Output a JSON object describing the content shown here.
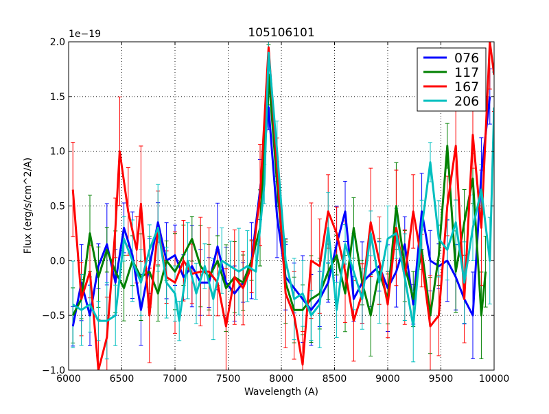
{
  "chart_data": {
    "type": "line",
    "title": "105106101",
    "xlabel": "Wavelength (A)",
    "ylabel": "Flux (erg/s/cm^2/A)",
    "y_offset_label": "1e−19",
    "xlim": [
      6000,
      10000
    ],
    "ylim": [
      -1.0,
      2.0
    ],
    "xticks": [
      "6000",
      "6500",
      "7000",
      "7500",
      "8000",
      "8500",
      "9000",
      "9500",
      "10000"
    ],
    "yticks": [
      "−1.0",
      "−0.5",
      "0.0",
      "0.5",
      "1.0",
      "1.5",
      "2.0"
    ],
    "grid": true,
    "legend_position": "top-right",
    "series": [
      {
        "name": "076",
        "color": "#0000ff",
        "typical_error": 0.3,
        "x": [
          6040,
          6120,
          6200,
          6280,
          6360,
          6440,
          6520,
          6600,
          6680,
          6760,
          6840,
          6920,
          7000,
          7080,
          7160,
          7240,
          7320,
          7400,
          7480,
          7560,
          7640,
          7720,
          7800,
          7880,
          7960,
          8040,
          8120,
          8200,
          8280,
          8360,
          8440,
          8520,
          8600,
          8680,
          8760,
          8840,
          8920,
          9000,
          9080,
          9160,
          9240,
          9320,
          9400,
          9480,
          9560,
          9640,
          9720,
          9800,
          9880,
          9960
        ],
        "y": [
          -0.6,
          -0.2,
          -0.5,
          -0.05,
          0.15,
          -0.2,
          0.3,
          0.05,
          -0.45,
          -0.05,
          0.35,
          0.0,
          0.05,
          -0.15,
          -0.05,
          -0.2,
          -0.2,
          0.13,
          -0.2,
          -0.3,
          -0.2,
          0.0,
          0.65,
          1.4,
          0.4,
          -0.15,
          -0.25,
          -0.35,
          -0.45,
          -0.35,
          -0.2,
          0.15,
          0.45,
          -0.35,
          -0.2,
          -0.12,
          -0.05,
          -0.25,
          -0.1,
          0.15,
          -0.4,
          0.45,
          0.0,
          -0.05,
          0.0,
          -0.15,
          -0.35,
          -0.5,
          0.8,
          1.5
        ]
      },
      {
        "name": "117",
        "color": "#008000",
        "typical_error": 0.3,
        "x": [
          6040,
          6120,
          6200,
          6280,
          6360,
          6440,
          6520,
          6600,
          6680,
          6760,
          6840,
          6920,
          7000,
          7080,
          7160,
          7240,
          7320,
          7400,
          7480,
          7560,
          7640,
          7720,
          7800,
          7880,
          7960,
          8040,
          8120,
          8200,
          8280,
          8360,
          8440,
          8520,
          8600,
          8680,
          8760,
          8840,
          8920,
          9000,
          9080,
          9160,
          9240,
          9320,
          9400,
          9480,
          9560,
          9640,
          9720,
          9800,
          9880,
          9920
        ],
        "y": [
          -0.5,
          -0.35,
          0.25,
          -0.15,
          0.1,
          -0.1,
          -0.25,
          0.0,
          -0.15,
          -0.1,
          -0.3,
          0.0,
          -0.1,
          0.05,
          0.2,
          -0.05,
          -0.15,
          0.0,
          -0.25,
          -0.15,
          -0.2,
          0.0,
          0.3,
          1.7,
          0.7,
          -0.2,
          -0.45,
          -0.45,
          -0.35,
          -0.3,
          -0.1,
          0.05,
          -0.3,
          0.3,
          -0.2,
          -0.5,
          -0.1,
          -0.35,
          0.5,
          -0.05,
          -0.35,
          0.1,
          -0.5,
          0.05,
          1.05,
          -0.1,
          0.35,
          0.75,
          -0.5,
          -0.1
        ]
      },
      {
        "name": "167",
        "color": "#ff0000",
        "typical_error": 0.4,
        "x": [
          6040,
          6120,
          6200,
          6280,
          6360,
          6440,
          6480,
          6560,
          6640,
          6680,
          6760,
          6840,
          6920,
          7000,
          7080,
          7160,
          7240,
          7320,
          7400,
          7480,
          7560,
          7640,
          7720,
          7800,
          7880,
          7960,
          8040,
          8120,
          8200,
          8280,
          8360,
          8440,
          8520,
          8600,
          8680,
          8760,
          8840,
          8920,
          9000,
          9080,
          9160,
          9240,
          9320,
          9400,
          9480,
          9560,
          9640,
          9720,
          9800,
          9880,
          9960,
          10000
        ],
        "y": [
          0.65,
          -0.35,
          -0.1,
          -1.0,
          -0.7,
          0.3,
          1.0,
          0.45,
          0.1,
          0.52,
          -0.5,
          0.3,
          -0.15,
          -0.2,
          0.0,
          -0.12,
          -0.1,
          -0.1,
          -0.2,
          -0.6,
          -0.15,
          -0.25,
          -0.05,
          0.6,
          1.95,
          0.85,
          -0.3,
          -0.5,
          -0.95,
          0.0,
          -0.05,
          0.45,
          0.25,
          -0.1,
          -0.55,
          -0.3,
          0.35,
          0.0,
          -0.4,
          0.3,
          -0.15,
          0.45,
          0.0,
          -0.6,
          -0.5,
          0.5,
          1.05,
          -0.35,
          1.15,
          0.3,
          2.0,
          1.7
        ]
      },
      {
        "name": "206",
        "color": "#00bfbf",
        "typical_error": 0.3,
        "x": [
          6040,
          6120,
          6200,
          6280,
          6360,
          6440,
          6520,
          6600,
          6680,
          6760,
          6840,
          6920,
          7000,
          7040,
          7120,
          7200,
          7280,
          7360,
          7440,
          7520,
          7600,
          7680,
          7760,
          7840,
          7880,
          7960,
          8040,
          8120,
          8200,
          8280,
          8360,
          8440,
          8520,
          8600,
          8680,
          8760,
          8840,
          8920,
          9000,
          9080,
          9160,
          9240,
          9320,
          9400,
          9480,
          9560,
          9640,
          9720,
          9800,
          9880,
          9960,
          10000
        ],
        "y": [
          -0.4,
          -0.45,
          -0.4,
          -0.55,
          -0.55,
          -0.5,
          0.2,
          0.0,
          -0.2,
          0.1,
          0.3,
          -0.2,
          -0.3,
          -0.55,
          0.0,
          -0.3,
          -0.05,
          -0.35,
          0.0,
          -0.05,
          -0.1,
          -0.05,
          -0.1,
          0.7,
          1.9,
          1.0,
          0.0,
          -0.35,
          -0.3,
          -0.5,
          -0.4,
          0.3,
          -0.45,
          0.15,
          -0.1,
          -0.35,
          0.25,
          -0.2,
          0.2,
          0.25,
          -0.15,
          -0.6,
          0.3,
          0.9,
          0.2,
          0.1,
          0.35,
          -0.2,
          0.3,
          0.65,
          0.0,
          1.4
        ]
      }
    ]
  }
}
